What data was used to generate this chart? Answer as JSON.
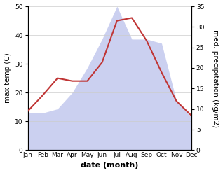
{
  "months": [
    "Jan",
    "Feb",
    "Mar",
    "Apr",
    "May",
    "Jun",
    "Jul",
    "Aug",
    "Sep",
    "Oct",
    "Nov",
    "Dec"
  ],
  "temperature": [
    13.5,
    19.0,
    25.0,
    24.0,
    24.0,
    30.5,
    45.0,
    46.0,
    38.0,
    27.0,
    17.0,
    12.0
  ],
  "precipitation": [
    9.0,
    9.0,
    10.0,
    14.0,
    20.0,
    27.0,
    35.0,
    27.0,
    27.0,
    26.0,
    12.0,
    8.0
  ],
  "temp_ylim": [
    0,
    50
  ],
  "precip_ylim": [
    0,
    35
  ],
  "temp_yticks": [
    0,
    10,
    20,
    30,
    40,
    50
  ],
  "precip_yticks": [
    0,
    5,
    10,
    15,
    20,
    25,
    30,
    35
  ],
  "xlabel": "date (month)",
  "ylabel_left": "max temp (C)",
  "ylabel_right": "med. precipitation (kg/m2)",
  "line_color": "#c03535",
  "fill_color": "#b0b8e8",
  "fill_alpha": 0.65,
  "bg_color": "#ffffff",
  "label_fontsize": 7.5,
  "tick_fontsize": 6.5
}
